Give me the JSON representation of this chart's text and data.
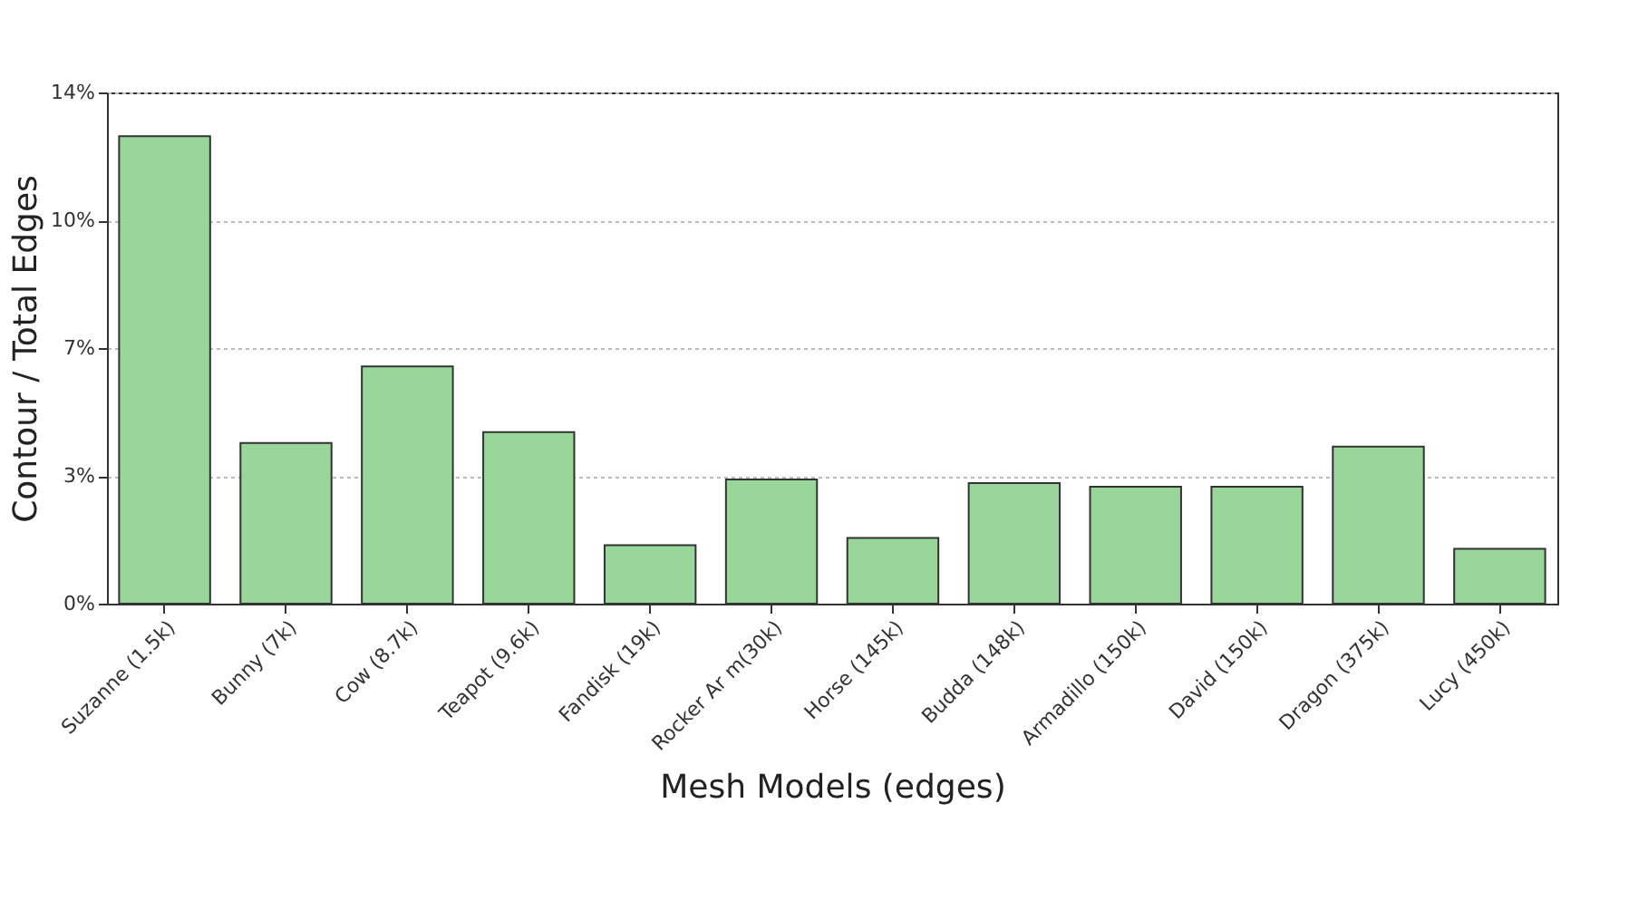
{
  "chart_data": {
    "type": "bar",
    "xlabel": "Mesh Models (edges)",
    "ylabel": "Contour / Total Edges",
    "categories": [
      "Suzanne (1.5k)",
      "Bunny (7k)",
      "Cow (8.7k)",
      "Teapot (9.6k)",
      "Fandisk (19k)",
      "Rocker Ar m(30k)",
      "Horse (145k)",
      "Budda (148k)",
      "Armadillo (150k)",
      "David (150k)",
      "Dragon (375k)",
      "Lucy (450k)"
    ],
    "values": [
      12.8,
      4.4,
      6.5,
      4.7,
      1.6,
      3.4,
      1.8,
      3.3,
      3.2,
      3.2,
      4.3,
      1.5
    ],
    "color": "#98d69a",
    "ylim": [
      0,
      14
    ],
    "yticks": [
      {
        "value": 0,
        "label": "0%"
      },
      {
        "value": 3.5,
        "label": "3%"
      },
      {
        "value": 7,
        "label": "7%"
      },
      {
        "value": 10.5,
        "label": "10%"
      },
      {
        "value": 14,
        "label": "14%"
      }
    ],
    "grid": "y"
  }
}
